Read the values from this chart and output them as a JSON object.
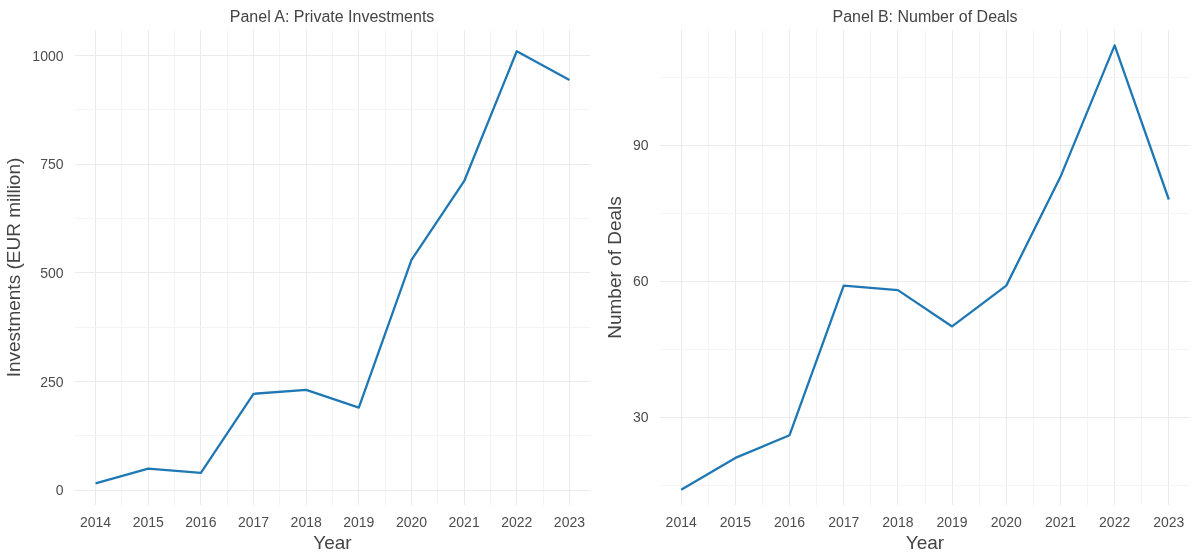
{
  "chart_data": [
    {
      "type": "line",
      "title": "Panel A: Private Investments",
      "xlabel": "Year",
      "ylabel": "Investments (EUR million)",
      "x": [
        2014,
        2015,
        2016,
        2017,
        2018,
        2019,
        2020,
        2021,
        2022,
        2023
      ],
      "series": [
        {
          "color": "#1f78b4",
          "values": [
            16,
            50,
            40,
            222,
            231,
            190,
            530,
            711,
            1010,
            944
          ]
        }
      ],
      "xlim": [
        2013.6,
        2023.4
      ],
      "xticks": [
        2014,
        2015,
        2016,
        2017,
        2018,
        2019,
        2020,
        2021,
        2022,
        2023
      ],
      "ylim": [
        -35,
        1060
      ],
      "yticks": [
        0,
        250,
        500,
        750,
        1000
      ],
      "grid": true
    },
    {
      "type": "line",
      "title": "Panel B: Number of Deals",
      "xlabel": "Year",
      "ylabel": "Number of Deals",
      "x": [
        2014,
        2015,
        2016,
        2017,
        2018,
        2019,
        2020,
        2021,
        2022,
        2023
      ],
      "series": [
        {
          "color": "#1f78b4",
          "values": [
            14,
            21,
            26,
            59,
            58,
            50,
            59,
            83,
            112,
            78
          ]
        }
      ],
      "xlim": [
        2013.6,
        2023.4
      ],
      "xticks": [
        2014,
        2015,
        2016,
        2017,
        2018,
        2019,
        2020,
        2021,
        2022,
        2023
      ],
      "ylim": [
        10.5,
        115.5
      ],
      "yticks": [
        30,
        60,
        90
      ],
      "grid": true
    }
  ]
}
